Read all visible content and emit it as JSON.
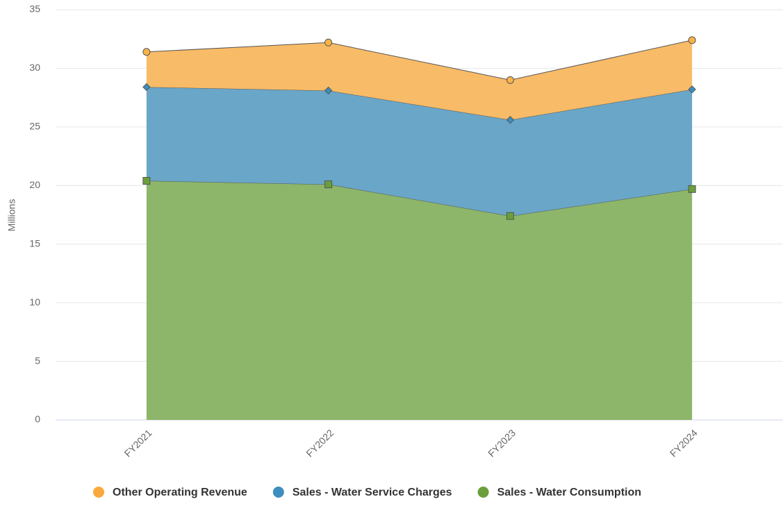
{
  "chart_data": {
    "type": "stacked_area",
    "y_label": "Millions",
    "categories": [
      "FY2021",
      "FY2022",
      "FY2023",
      "FY2024"
    ],
    "series": [
      {
        "name": "Other Operating Revenue",
        "color": "#f9a93b",
        "fill": "#f8bb67",
        "marker": "circle",
        "values": [
          3.0,
          4.1,
          3.4,
          4.2
        ]
      },
      {
        "name": "Sales - Water Service Charges",
        "color": "#3e8ebf",
        "fill": "#6aa6c8",
        "marker": "diamond",
        "values": [
          8.0,
          8.0,
          8.2,
          8.5
        ]
      },
      {
        "name": "Sales - Water Consumption",
        "color": "#6a9f3b",
        "fill": "#8db66a",
        "marker": "square",
        "values": [
          20.4,
          20.1,
          17.4,
          19.7
        ]
      }
    ],
    "ylim": [
      0,
      35
    ],
    "yticks": [
      0,
      5,
      10,
      15,
      20,
      25,
      30,
      35
    ],
    "grid": true,
    "legend": "bottom"
  }
}
